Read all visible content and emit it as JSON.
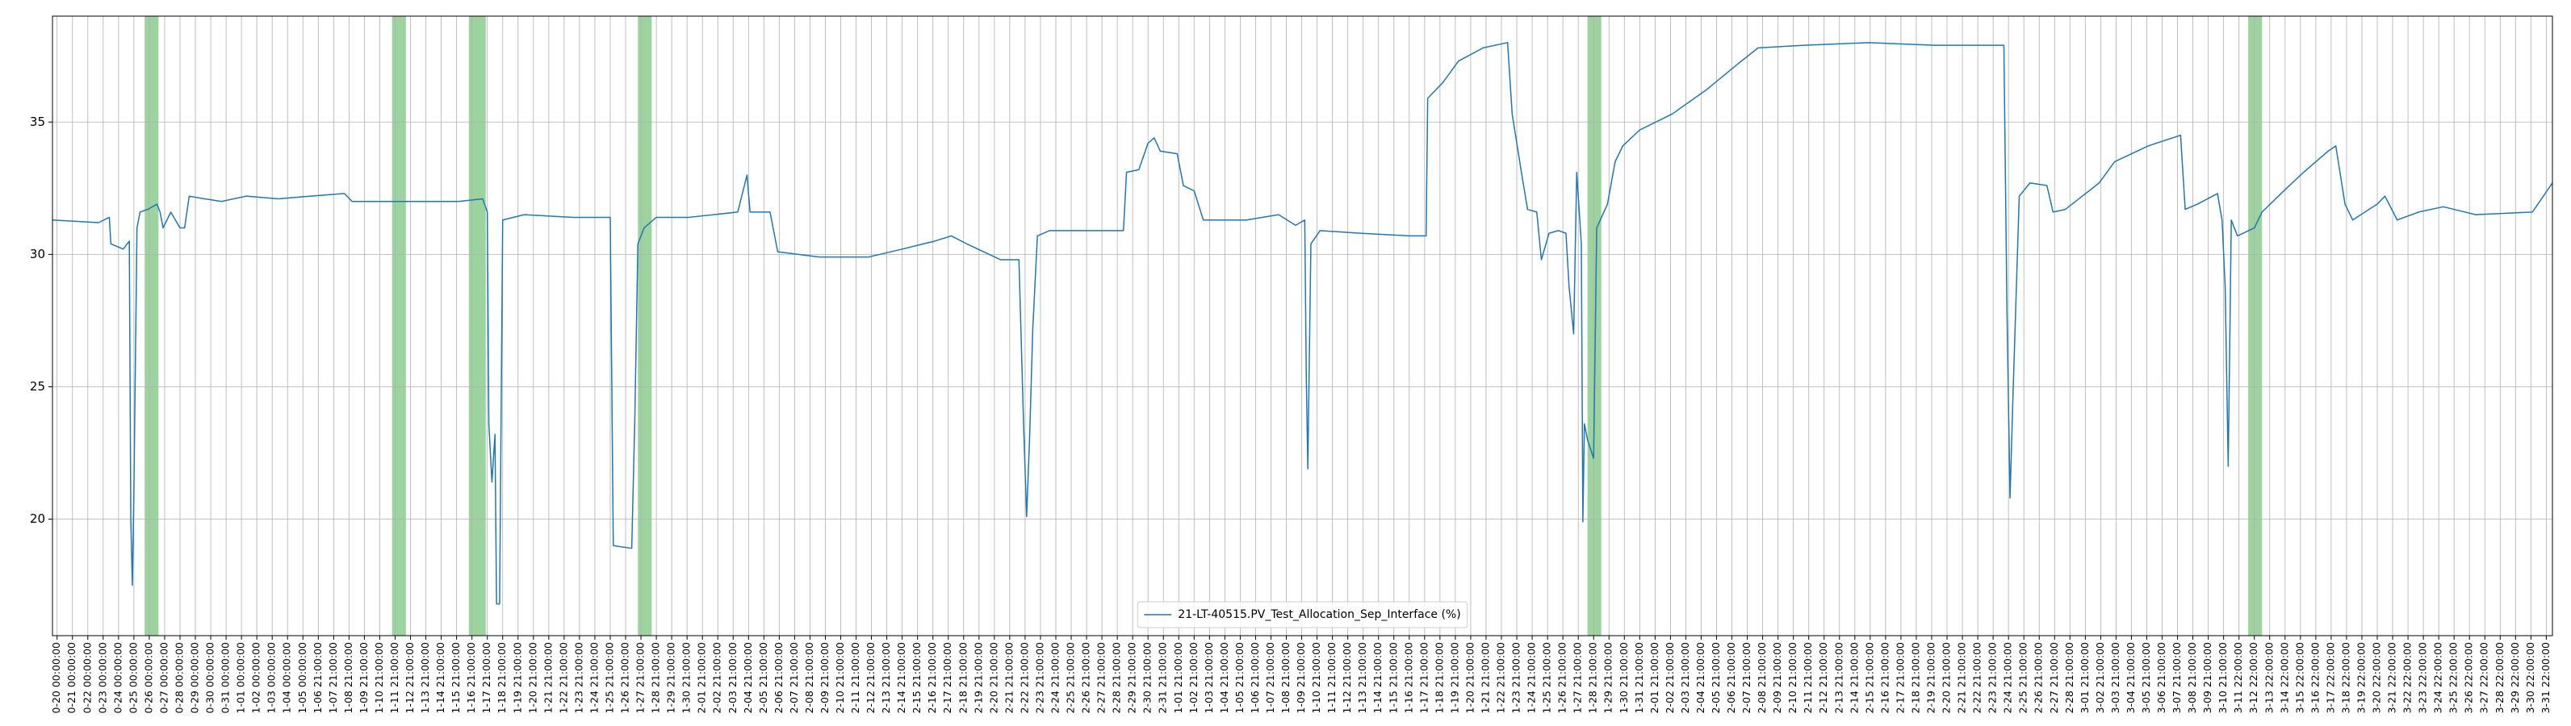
{
  "chart_data": {
    "type": "line",
    "legend": "lower center",
    "grid": true,
    "ylim": [
      15.6,
      39.0
    ],
    "yticks": [
      20,
      25,
      30,
      35
    ],
    "xlim": [
      -0.3,
      162.4
    ],
    "span_color": "#4caf50",
    "spans": [
      [
        5.7,
        6.6
      ],
      [
        21.8,
        22.7
      ],
      [
        26.8,
        27.9
      ],
      [
        37.8,
        38.7
      ],
      [
        99.6,
        100.5
      ],
      [
        142.6,
        143.5
      ]
    ],
    "xticks": [
      {
        "value": 0,
        "label": "0-20 00:00:00"
      },
      {
        "value": 1,
        "label": "0-21 00:00:00"
      },
      {
        "value": 2,
        "label": "0-22 00:00:00"
      },
      {
        "value": 3,
        "label": "0-23 00:00:00"
      },
      {
        "value": 4,
        "label": "0-24 00:00:00"
      },
      {
        "value": 5,
        "label": "0-25 00:00:00"
      },
      {
        "value": 6,
        "label": "0-26 00:00:00"
      },
      {
        "value": 7,
        "label": "0-27 00:00:00"
      },
      {
        "value": 8,
        "label": "0-28 00:00:00"
      },
      {
        "value": 9,
        "label": "0-29 00:00:00"
      },
      {
        "value": 10,
        "label": "0-30 00:00:00"
      },
      {
        "value": 11,
        "label": "0-31 00:00:00"
      },
      {
        "value": 12,
        "label": "1-01 00:00:00"
      },
      {
        "value": 13,
        "label": "1-02 00:00:00"
      },
      {
        "value": 14,
        "label": "1-03 00:00:00"
      },
      {
        "value": 15,
        "label": "1-04 00:00:00"
      },
      {
        "value": 16,
        "label": "1-05 00:00:00"
      },
      {
        "value": 17,
        "label": "1-06 21:00:00"
      },
      {
        "value": 18,
        "label": "1-07 21:00:00"
      },
      {
        "value": 19,
        "label": "1-08 21:00:00"
      },
      {
        "value": 20,
        "label": "1-09 21:00:00"
      },
      {
        "value": 21,
        "label": "1-10 21:00:00"
      },
      {
        "value": 22,
        "label": "1-11 21:00:00"
      },
      {
        "value": 23,
        "label": "1-12 21:00:00"
      },
      {
        "value": 24,
        "label": "1-13 21:00:00"
      },
      {
        "value": 25,
        "label": "1-14 21:00:00"
      },
      {
        "value": 26,
        "label": "1-15 21:00:00"
      },
      {
        "value": 27,
        "label": "1-16 21:00:00"
      },
      {
        "value": 28,
        "label": "1-17 21:00:00"
      },
      {
        "value": 29,
        "label": "1-18 21:00:00"
      },
      {
        "value": 30,
        "label": "1-19 21:00:00"
      },
      {
        "value": 31,
        "label": "1-20 21:00:00"
      },
      {
        "value": 32,
        "label": "1-21 21:00:00"
      },
      {
        "value": 33,
        "label": "1-22 21:00:00"
      },
      {
        "value": 34,
        "label": "1-23 21:00:00"
      },
      {
        "value": 35,
        "label": "1-24 21:00:00"
      },
      {
        "value": 36,
        "label": "1-25 21:00:00"
      },
      {
        "value": 37,
        "label": "1-26 21:00:00"
      },
      {
        "value": 38,
        "label": "1-27 21:00:00"
      },
      {
        "value": 39,
        "label": "1-28 21:00:00"
      },
      {
        "value": 40,
        "label": "1-29 21:00:00"
      },
      {
        "value": 41,
        "label": "1-30 21:00:00"
      },
      {
        "value": 42,
        "label": "2-01 21:00:00"
      },
      {
        "value": 43,
        "label": "2-02 21:00:00"
      },
      {
        "value": 44,
        "label": "2-03 21:00:00"
      },
      {
        "value": 45,
        "label": "2-04 21:00:00"
      },
      {
        "value": 46,
        "label": "2-05 21:00:00"
      },
      {
        "value": 47,
        "label": "2-06 21:00:00"
      },
      {
        "value": 48,
        "label": "2-07 21:00:00"
      },
      {
        "value": 49,
        "label": "2-08 21:00:00"
      },
      {
        "value": 50,
        "label": "2-09 21:00:00"
      },
      {
        "value": 51,
        "label": "2-10 21:00:00"
      },
      {
        "value": 52,
        "label": "2-11 21:00:00"
      },
      {
        "value": 53,
        "label": "2-12 21:00:00"
      },
      {
        "value": 54,
        "label": "2-13 21:00:00"
      },
      {
        "value": 55,
        "label": "2-14 21:00:00"
      },
      {
        "value": 56,
        "label": "2-15 21:00:00"
      },
      {
        "value": 57,
        "label": "2-16 21:00:00"
      },
      {
        "value": 58,
        "label": "2-17 21:00:00"
      },
      {
        "value": 59,
        "label": "2-18 21:00:00"
      },
      {
        "value": 60,
        "label": "2-19 21:00:00"
      },
      {
        "value": 61,
        "label": "2-20 21:00:00"
      },
      {
        "value": 62,
        "label": "2-21 21:00:00"
      },
      {
        "value": 63,
        "label": "2-22 21:00:00"
      },
      {
        "value": 64,
        "label": "2-23 21:00:00"
      },
      {
        "value": 65,
        "label": "2-24 21:00:00"
      },
      {
        "value": 66,
        "label": "2-25 21:00:00"
      },
      {
        "value": 67,
        "label": "2-26 21:00:00"
      },
      {
        "value": 68,
        "label": "2-27 21:00:00"
      },
      {
        "value": 69,
        "label": "2-28 21:00:00"
      },
      {
        "value": 70,
        "label": "2-29 21:00:00"
      },
      {
        "value": 71,
        "label": "2-30 21:00:00"
      },
      {
        "value": 72,
        "label": "2-31 21:00:00"
      },
      {
        "value": 73,
        "label": "1-01 21:00:00"
      },
      {
        "value": 74,
        "label": "1-02 21:00:00"
      },
      {
        "value": 75,
        "label": "1-03 21:00:00"
      },
      {
        "value": 76,
        "label": "1-04 21:00:00"
      },
      {
        "value": 77,
        "label": "1-05 21:00:00"
      },
      {
        "value": 78,
        "label": "1-06 21:00:00"
      },
      {
        "value": 79,
        "label": "1-07 21:00:00"
      },
      {
        "value": 80,
        "label": "1-08 21:00:00"
      },
      {
        "value": 81,
        "label": "1-09 21:00:00"
      },
      {
        "value": 82,
        "label": "1-10 21:00:00"
      },
      {
        "value": 83,
        "label": "1-11 21:00:00"
      },
      {
        "value": 84,
        "label": "1-12 21:00:00"
      },
      {
        "value": 85,
        "label": "1-13 21:00:00"
      },
      {
        "value": 86,
        "label": "1-14 21:00:00"
      },
      {
        "value": 87,
        "label": "1-15 21:00:00"
      },
      {
        "value": 88,
        "label": "1-16 21:00:00"
      },
      {
        "value": 89,
        "label": "1-17 21:00:00"
      },
      {
        "value": 90,
        "label": "1-18 21:00:00"
      },
      {
        "value": 91,
        "label": "1-19 21:00:00"
      },
      {
        "value": 92,
        "label": "1-20 21:00:00"
      },
      {
        "value": 93,
        "label": "1-21 21:00:00"
      },
      {
        "value": 94,
        "label": "1-22 21:00:00"
      },
      {
        "value": 95,
        "label": "1-23 21:00:00"
      },
      {
        "value": 96,
        "label": "1-24 21:00:00"
      },
      {
        "value": 97,
        "label": "1-25 21:00:00"
      },
      {
        "value": 98,
        "label": "1-26 21:00:00"
      },
      {
        "value": 99,
        "label": "1-27 21:00:00"
      },
      {
        "value": 100,
        "label": "1-28 21:00:00"
      },
      {
        "value": 101,
        "label": "1-29 21:00:00"
      },
      {
        "value": 102,
        "label": "1-30 21:00:00"
      },
      {
        "value": 103,
        "label": "1-31 21:00:00"
      },
      {
        "value": 104,
        "label": "2-01 21:00:00"
      },
      {
        "value": 105,
        "label": "2-02 21:00:00"
      },
      {
        "value": 106,
        "label": "2-03 21:00:00"
      },
      {
        "value": 107,
        "label": "2-04 21:00:00"
      },
      {
        "value": 108,
        "label": "2-05 21:00:00"
      },
      {
        "value": 109,
        "label": "2-06 21:00:00"
      },
      {
        "value": 110,
        "label": "2-07 21:00:00"
      },
      {
        "value": 111,
        "label": "2-08 21:00:00"
      },
      {
        "value": 112,
        "label": "2-09 21:00:00"
      },
      {
        "value": 113,
        "label": "2-10 21:00:00"
      },
      {
        "value": 114,
        "label": "2-11 21:00:00"
      },
      {
        "value": 115,
        "label": "2-12 21:00:00"
      },
      {
        "value": 116,
        "label": "2-13 21:00:00"
      },
      {
        "value": 117,
        "label": "2-14 21:00:00"
      },
      {
        "value": 118,
        "label": "2-15 21:00:00"
      },
      {
        "value": 119,
        "label": "2-16 21:00:00"
      },
      {
        "value": 120,
        "label": "2-17 21:00:00"
      },
      {
        "value": 121,
        "label": "2-18 21:00:00"
      },
      {
        "value": 122,
        "label": "2-19 21:00:00"
      },
      {
        "value": 123,
        "label": "2-20 21:00:00"
      },
      {
        "value": 124,
        "label": "2-21 21:00:00"
      },
      {
        "value": 125,
        "label": "2-22 21:00:00"
      },
      {
        "value": 126,
        "label": "2-23 21:00:00"
      },
      {
        "value": 127,
        "label": "2-24 21:00:00"
      },
      {
        "value": 128,
        "label": "2-25 21:00:00"
      },
      {
        "value": 129,
        "label": "2-26 21:00:00"
      },
      {
        "value": 130,
        "label": "2-27 21:00:00"
      },
      {
        "value": 131,
        "label": "2-28 21:00:00"
      },
      {
        "value": 132,
        "label": "3-01 21:00:00"
      },
      {
        "value": 133,
        "label": "3-02 21:00:00"
      },
      {
        "value": 134,
        "label": "3-03 21:00:00"
      },
      {
        "value": 135,
        "label": "3-04 21:00:00"
      },
      {
        "value": 136,
        "label": "3-05 21:00:00"
      },
      {
        "value": 137,
        "label": "3-06 21:00:00"
      },
      {
        "value": 138,
        "label": "3-07 21:00:00"
      },
      {
        "value": 139,
        "label": "3-08 21:00:00"
      },
      {
        "value": 140,
        "label": "3-09 21:00:00"
      },
      {
        "value": 141,
        "label": "3-10 21:00:00"
      },
      {
        "value": 142,
        "label": "3-11 22:00:00"
      },
      {
        "value": 143,
        "label": "3-12 22:00:00"
      },
      {
        "value": 144,
        "label": "3-13 22:00:00"
      },
      {
        "value": 145,
        "label": "3-14 22:00:00"
      },
      {
        "value": 146,
        "label": "3-15 22:00:00"
      },
      {
        "value": 147,
        "label": "3-16 22:00:00"
      },
      {
        "value": 148,
        "label": "3-17 22:00:00"
      },
      {
        "value": 149,
        "label": "3-18 22:00:00"
      },
      {
        "value": 150,
        "label": "3-19 22:00:00"
      },
      {
        "value": 151,
        "label": "3-20 22:00:00"
      },
      {
        "value": 152,
        "label": "3-21 22:00:00"
      },
      {
        "value": 153,
        "label": "3-22 22:00:00"
      },
      {
        "value": 154,
        "label": "3-23 22:00:00"
      },
      {
        "value": 155,
        "label": "3-24 22:00:00"
      },
      {
        "value": 156,
        "label": "3-25 22:00:00"
      },
      {
        "value": 157,
        "label": "3-26 22:00:00"
      },
      {
        "value": 158,
        "label": "3-27 22:00:00"
      },
      {
        "value": 159,
        "label": "3-28 22:00:00"
      },
      {
        "value": 160,
        "label": "3-29 22:00:00"
      },
      {
        "value": 161,
        "label": "3-30 22:00:00"
      },
      {
        "value": 162,
        "label": "3-31 22:00:00"
      }
    ],
    "x": [
      -0.3,
      2.7,
      3.4,
      3.5,
      4.3,
      4.7,
      4.8,
      4.9,
      5.0,
      5.2,
      5.4,
      5.9,
      6.5,
      6.7,
      6.9,
      7.4,
      8.0,
      8.3,
      8.6,
      9.6,
      10.7,
      12.3,
      14.4,
      16.5,
      18.7,
      19.2,
      21.9,
      24.0,
      26.1,
      27.7,
      28.0,
      28.1,
      28.3,
      28.5,
      28.6,
      28.8,
      29.0,
      30.4,
      33.6,
      36.0,
      36.2,
      37.4,
      37.6,
      37.8,
      38.2,
      39.0,
      41.1,
      44.3,
      44.9,
      45.1,
      46.4,
      46.9,
      49.6,
      52.8,
      55.0,
      57.1,
      58.2,
      59.2,
      61.4,
      62.6,
      62.9,
      63.1,
      63.3,
      63.5,
      63.8,
      64.6,
      66.7,
      69.4,
      69.6,
      70.4,
      71.0,
      71.4,
      71.8,
      72.9,
      73.3,
      74.0,
      74.6,
      77.4,
      79.5,
      80.6,
      81.2,
      81.3,
      81.4,
      81.6,
      82.2,
      84.8,
      88.0,
      89.1,
      89.2,
      90.2,
      91.2,
      92.8,
      94.4,
      94.7,
      95.3,
      95.7,
      96.3,
      96.6,
      97.1,
      97.7,
      98.2,
      98.4,
      98.7,
      98.9,
      99.2,
      99.3,
      99.4,
      99.6,
      100.0,
      100.2,
      100.9,
      101.4,
      101.9,
      103.0,
      105.1,
      107.3,
      109.4,
      110.7,
      113.7,
      117.9,
      122.2,
      126.7,
      126.9,
      127.1,
      127.3,
      127.7,
      128.4,
      129.5,
      129.9,
      130.7,
      131.8,
      132.9,
      133.9,
      136.1,
      138.2,
      138.5,
      139.3,
      140.6,
      140.9,
      141.1,
      141.3,
      141.5,
      141.9,
      143.0,
      143.5,
      145.1,
      146.2,
      147.8,
      148.3,
      148.9,
      149.4,
      151.0,
      151.5,
      152.3,
      153.7,
      155.3,
      157.4,
      161.1,
      162.4
    ],
    "series": [
      {
        "name": "21-LT-40515.PV_Test_Allocation_Sep_Interface (%)",
        "color": "#1f77b4",
        "values": [
          31.3,
          31.2,
          31.4,
          30.4,
          30.2,
          30.5,
          19.9,
          17.5,
          21.1,
          31.0,
          31.6,
          31.7,
          31.9,
          31.6,
          31.0,
          31.6,
          31.0,
          31.0,
          32.2,
          32.1,
          32.0,
          32.2,
          32.1,
          32.2,
          32.3,
          32.0,
          32.0,
          32.0,
          32.0,
          32.1,
          31.6,
          23.6,
          21.4,
          23.2,
          16.8,
          16.8,
          31.3,
          31.5,
          31.4,
          31.4,
          19.0,
          18.9,
          23.8,
          30.4,
          31.0,
          31.4,
          31.4,
          31.6,
          33.0,
          31.6,
          31.6,
          30.1,
          29.9,
          29.9,
          30.2,
          30.5,
          30.7,
          30.4,
          29.8,
          29.8,
          23.6,
          20.1,
          23.2,
          27.2,
          30.7,
          30.9,
          30.9,
          30.9,
          33.1,
          33.2,
          34.2,
          34.4,
          33.9,
          33.8,
          32.6,
          32.4,
          31.3,
          31.3,
          31.5,
          31.1,
          31.3,
          25.4,
          21.9,
          30.4,
          30.9,
          30.8,
          30.7,
          30.7,
          35.9,
          36.5,
          37.3,
          37.8,
          38.0,
          35.3,
          33.1,
          31.7,
          31.6,
          29.8,
          30.8,
          30.9,
          30.8,
          28.8,
          27.0,
          33.1,
          30.4,
          19.9,
          23.6,
          23.0,
          22.3,
          31.0,
          31.9,
          33.5,
          34.1,
          34.7,
          35.3,
          36.2,
          37.2,
          37.8,
          37.9,
          38.0,
          37.9,
          37.9,
          27.9,
          20.8,
          24.8,
          32.2,
          32.7,
          32.6,
          31.6,
          31.7,
          32.2,
          32.7,
          33.5,
          34.1,
          34.5,
          31.7,
          31.9,
          32.3,
          31.3,
          28.8,
          22.0,
          31.3,
          30.7,
          31.0,
          31.6,
          32.5,
          33.1,
          33.9,
          34.1,
          31.9,
          31.3,
          31.9,
          32.2,
          31.3,
          31.6,
          31.8,
          31.5,
          31.6,
          32.7
        ]
      }
    ]
  }
}
